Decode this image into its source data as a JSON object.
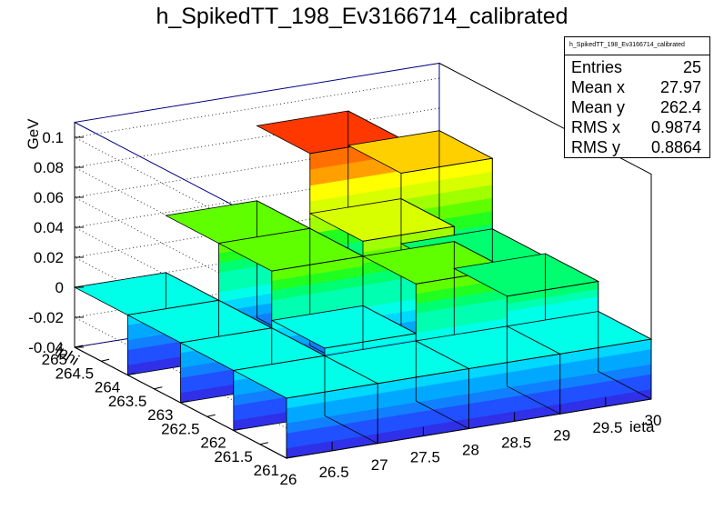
{
  "title": "h_SpikedTT_198_Ev3166714_calibrated",
  "stats": {
    "name": "h_SpikedTT_198_Ev3166714_calibrated",
    "rows": [
      {
        "label": "Entries",
        "value": "25"
      },
      {
        "label": "Mean x",
        "value": "27.97"
      },
      {
        "label": "Mean y",
        "value": "262.4"
      },
      {
        "label": "RMS x",
        "value": "0.9874"
      },
      {
        "label": "RMS y",
        "value": "0.8864"
      }
    ]
  },
  "chart_data": {
    "type": "lego",
    "title": "h_SpikedTT_198_Ev3166714_calibrated",
    "xlabel": "ieta",
    "ylabel": "iphi",
    "zlabel": "GeV",
    "xlim": [
      26,
      30
    ],
    "ylim": [
      261,
      265
    ],
    "zlim": [
      -0.04,
      0.11
    ],
    "x_ticks": [
      "26",
      "26.5",
      "27",
      "27.5",
      "28",
      "28.5",
      "29",
      "29.5",
      "30"
    ],
    "y_ticks": [
      "261",
      "261.5",
      "262",
      "262.5",
      "263",
      "263.5",
      "264",
      "264.5",
      "265"
    ],
    "z_ticks": [
      "-0.04",
      "-0.02",
      "0",
      "0.02",
      "0.04",
      "0.06",
      "0.08",
      "0.1"
    ],
    "x_bins": [
      26.5,
      27.5,
      28.5,
      29.5
    ],
    "y_bins": [
      261.5,
      262.5,
      263.5,
      264.5
    ],
    "cells": [
      {
        "x": 26.5,
        "y": 261.5,
        "z": 0
      },
      {
        "x": 26.5,
        "y": 262.5,
        "z": 0
      },
      {
        "x": 26.5,
        "y": 263.5,
        "z": 0
      },
      {
        "x": 26.5,
        "y": 264.5,
        "z": 0
      },
      {
        "x": 27.5,
        "y": 261.5,
        "z": 0
      },
      {
        "x": 27.5,
        "y": 262.5,
        "z": 0.005
      },
      {
        "x": 27.5,
        "y": 263.5,
        "z": 0.038
      },
      {
        "x": 27.5,
        "y": 264.5,
        "z": 0.038
      },
      {
        "x": 28.5,
        "y": 261.5,
        "z": 0
      },
      {
        "x": 28.5,
        "y": 262.5,
        "z": 0.038
      },
      {
        "x": 28.5,
        "y": 263.5,
        "z": 0.048
      },
      {
        "x": 28.5,
        "y": 264.5,
        "z": 0.088
      },
      {
        "x": 29.5,
        "y": 261.5,
        "z": 0
      },
      {
        "x": 29.5,
        "y": 262.5,
        "z": 0.02
      },
      {
        "x": 29.5,
        "y": 263.5,
        "z": 0.018
      },
      {
        "x": 29.5,
        "y": 264.5,
        "z": 0.065
      }
    ],
    "palette": [
      "#3030e8",
      "#2050ff",
      "#1080ff",
      "#00a8ff",
      "#00d8ff",
      "#00ffe8",
      "#00ffb0",
      "#00ff70",
      "#20ff20",
      "#60ff00",
      "#a0ff00",
      "#d8ff00",
      "#ffff00",
      "#ffd000",
      "#ffa000",
      "#ff7000",
      "#ff3800",
      "#ff0000"
    ],
    "grid": true
  }
}
